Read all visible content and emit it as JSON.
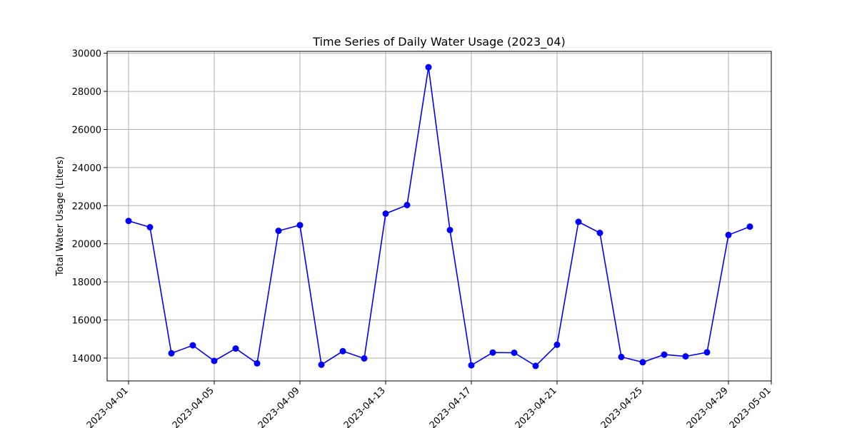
{
  "chart_data": {
    "type": "line",
    "title": "Time Series of Daily Water Usage (2023_04)",
    "xlabel": "",
    "ylabel": "Total Water Usage (Liters)",
    "x_type": "date",
    "xlim": [
      "2023-03-31",
      "2023-05-01"
    ],
    "ylim": [
      12800,
      30100
    ],
    "x_ticks": [
      "2023-04-01",
      "2023-04-05",
      "2023-04-09",
      "2023-04-13",
      "2023-04-17",
      "2023-04-21",
      "2023-04-25",
      "2023-04-29",
      "2023-05-01"
    ],
    "y_ticks": [
      14000,
      16000,
      18000,
      20000,
      22000,
      24000,
      26000,
      28000,
      30000
    ],
    "grid": true,
    "line_color": "#0000ff",
    "marker": "circle",
    "series": [
      {
        "x": [
          "2023-04-01",
          "2023-04-02",
          "2023-04-03",
          "2023-04-04",
          "2023-04-05",
          "2023-04-06",
          "2023-04-07",
          "2023-04-08",
          "2023-04-09",
          "2023-04-10",
          "2023-04-11",
          "2023-04-12",
          "2023-04-13",
          "2023-04-14",
          "2023-04-15",
          "2023-04-16",
          "2023-04-17",
          "2023-04-18",
          "2023-04-19",
          "2023-04-20",
          "2023-04-21",
          "2023-04-22",
          "2023-04-23",
          "2023-04-24",
          "2023-04-25",
          "2023-04-26",
          "2023-04-27",
          "2023-04-28",
          "2023-04-29",
          "2023-04-30"
        ],
        "values": [
          21200,
          20870,
          14250,
          14670,
          13850,
          14500,
          13720,
          20680,
          20980,
          13650,
          14360,
          13980,
          21580,
          22030,
          29270,
          20720,
          13620,
          14290,
          14280,
          13590,
          14700,
          21150,
          20570,
          14060,
          13780,
          14180,
          14090,
          14300,
          20460,
          20900
        ]
      }
    ]
  }
}
